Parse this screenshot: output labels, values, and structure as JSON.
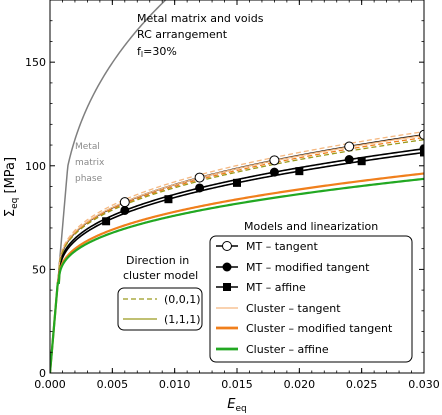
{
  "chart_data": {
    "type": "line",
    "xlabel_main": "E",
    "xlabel_sub": "eq",
    "ylabel_main": "Σ",
    "ylabel_sub": "eq",
    "ylabel_unit": " [MPa]",
    "xlim": [
      0,
      0.03
    ],
    "ylim": [
      0,
      180
    ],
    "xticks": [
      0,
      0.005,
      0.01,
      0.015,
      0.02,
      0.025,
      0.03
    ],
    "xtick_labels": [
      "0.000",
      "0.005",
      "0.010",
      "0.015",
      "0.020",
      "0.025",
      "0.030"
    ],
    "yticks": [
      0,
      50,
      100,
      150
    ],
    "ytick_labels": [
      "0",
      "50",
      "100",
      "150"
    ],
    "annotation_lines": [
      "Metal matrix and voids",
      "RC arrangement"
    ],
    "annotation_f_main": "f",
    "annotation_f_sub": "l",
    "annotation_f_rest": "=30%",
    "phase_label_lines": [
      "Metal",
      "matrix",
      "phase"
    ],
    "legend_models": {
      "title": "Models and linearization",
      "entries": [
        {
          "label": "MT – tangent",
          "color": "#000000",
          "marker": "open-circle"
        },
        {
          "label": "MT – modified tangent",
          "color": "#000000",
          "marker": "filled-circle"
        },
        {
          "label": "MT – affine",
          "color": "#000000",
          "marker": "filled-square"
        },
        {
          "label": "Cluster – tangent",
          "color": "#f5b880"
        },
        {
          "label": "Cluster – modified tangent",
          "color": "#f07f1c"
        },
        {
          "label": "Cluster – affine",
          "color": "#22a822"
        }
      ]
    },
    "legend_direction": {
      "title_lines": [
        "Direction in",
        "cluster model"
      ],
      "entries": [
        {
          "label": "(0,0,1)",
          "style": "dashed",
          "color": "#9a9a1e"
        },
        {
          "label": "(1,1,1)",
          "style": "solid",
          "color": "#9a9a1e"
        }
      ]
    },
    "series": [
      {
        "id": "matrix",
        "color": "#7f7f7f",
        "width": 1.5,
        "A": 49,
        "B": 800,
        "n": 0.38
      },
      {
        "id": "mt-tangent",
        "color": "#000000",
        "width": 1.6,
        "A": 47,
        "B": 260,
        "n": 0.38,
        "marker": "open-circle",
        "marker_x": [
          0.006,
          0.012,
          0.018,
          0.024,
          0.03
        ]
      },
      {
        "id": "mt-modified-tangent",
        "color": "#000000",
        "width": 1.6,
        "A": 46,
        "B": 238,
        "n": 0.38,
        "marker": "filled-circle",
        "marker_x": [
          0.006,
          0.012,
          0.018,
          0.024,
          0.03
        ]
      },
      {
        "id": "mt-affine",
        "color": "#000000",
        "width": 1.6,
        "A": 45,
        "B": 235,
        "n": 0.38,
        "marker": "filled-square",
        "marker_x": [
          0.0045,
          0.0095,
          0.015,
          0.02,
          0.025,
          0.03
        ]
      },
      {
        "id": "cluster-tangent-001",
        "color": "#f5b880",
        "width": 1.3,
        "dashed": true,
        "A": 48,
        "B": 262,
        "n": 0.38
      },
      {
        "id": "cluster-tangent-111",
        "color": "#f5b880",
        "width": 1.3,
        "A": 47.5,
        "B": 257,
        "n": 0.38
      },
      {
        "id": "cluster-modified-tangent-001",
        "color": "#f07f1c",
        "width": 1.3,
        "dashed": true,
        "A": 47,
        "B": 255,
        "n": 0.38
      },
      {
        "id": "cluster-modified-tangent-111",
        "color": "#f07f1c",
        "width": 2.2,
        "A": 44,
        "B": 200,
        "n": 0.38
      },
      {
        "id": "cluster-affine-001",
        "color": "#9a9a1e",
        "width": 1.3,
        "dashed": true,
        "A": 47,
        "B": 251,
        "n": 0.38
      },
      {
        "id": "cluster-affine-111",
        "color": "#22a822",
        "width": 2.2,
        "A": 43.5,
        "B": 192,
        "n": 0.38
      }
    ]
  }
}
